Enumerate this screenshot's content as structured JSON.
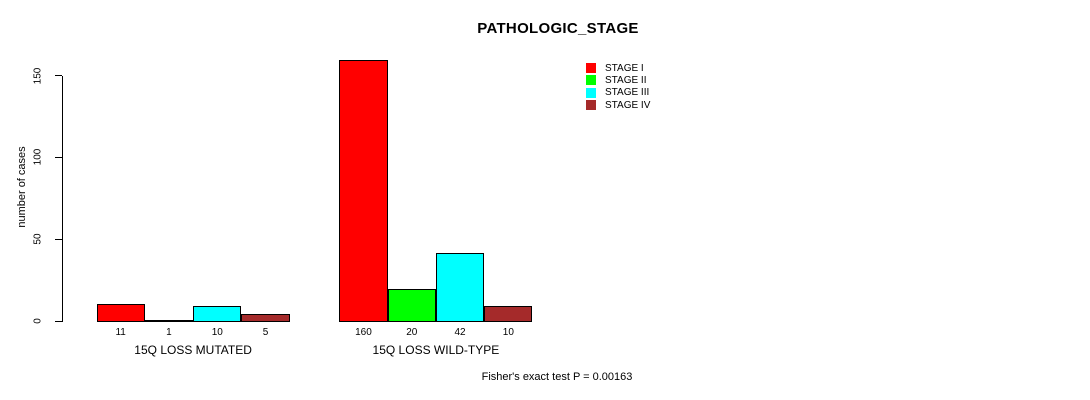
{
  "title": "PATHOLOGIC_STAGE",
  "footer_note": "Fisher's exact test P = 0.00163",
  "chart_data": {
    "type": "bar",
    "title": "PATHOLOGIC_STAGE",
    "xlabel": "",
    "ylabel": "number of cases",
    "ylim": [
      0,
      150
    ],
    "yticks": [
      0,
      50,
      100,
      150
    ],
    "grid": false,
    "legend_position": "top-right",
    "bar_border_color": "#000000",
    "categories": [
      "15Q LOSS MUTATED",
      "15Q LOSS WILD-TYPE"
    ],
    "series": [
      {
        "name": "STAGE I",
        "color": "#FF0000",
        "values": [
          11,
          160
        ]
      },
      {
        "name": "STAGE II",
        "color": "#00FF00",
        "values": [
          1,
          20
        ]
      },
      {
        "name": "STAGE III",
        "color": "#00FFFF",
        "values": [
          10,
          42
        ]
      },
      {
        "name": "STAGE IV",
        "color": "#A52A2A",
        "values": [
          5,
          10
        ]
      }
    ],
    "bar_value_labels": [
      [
        11,
        1,
        10,
        5
      ],
      [
        160,
        20,
        42,
        10
      ]
    ],
    "annotation": "Fisher's exact test P = 0.00163"
  }
}
